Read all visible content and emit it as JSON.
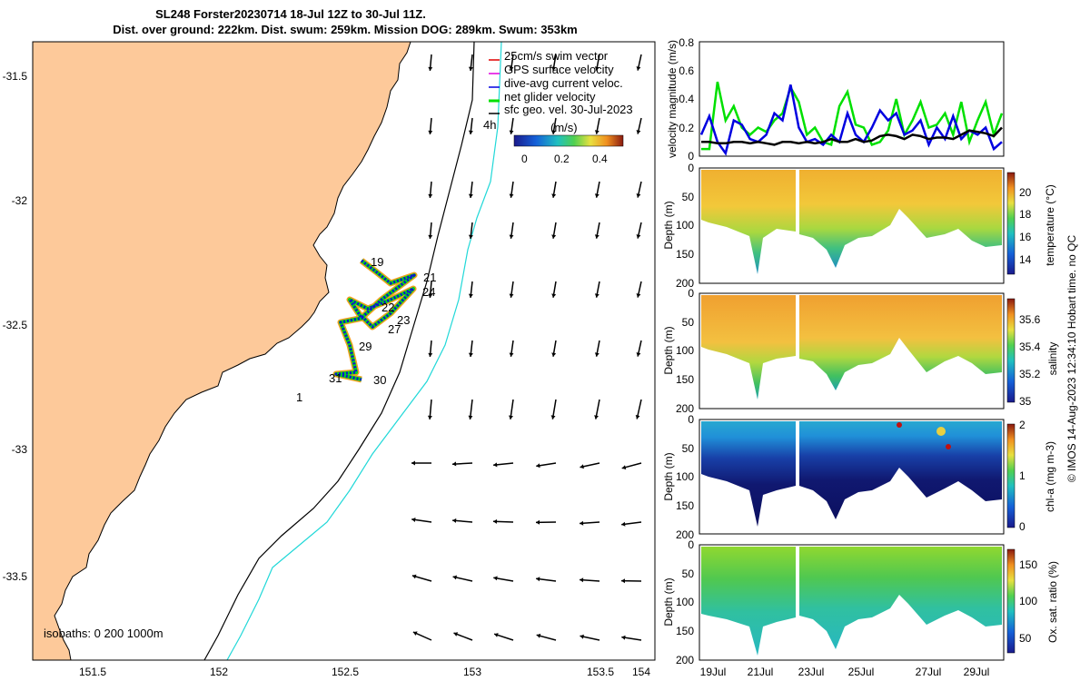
{
  "header": {
    "line1": "SL248 Forster20230714 18-Jul 12Z to 30-Jul 11Z.",
    "line2": "Dist. over ground: 222km. Dist. swum: 259km. Mission DOG: 289km. Swum: 353km"
  },
  "credit": "© IMOS 14-Aug-2023 12:34:10 Hobart time. no QC",
  "chart_data": [
    {
      "type": "map",
      "x_ticks": [
        "151.5",
        "152",
        "152.5",
        "153",
        "153.5",
        "154"
      ],
      "y_ticks": [
        "-31.5",
        "-32",
        "-32.5",
        "-33",
        "-33.5"
      ],
      "isobath_label": "isobaths: 0   200  1000m",
      "day_labels": [
        "19",
        "21",
        "24",
        "22",
        "23",
        "27",
        "29",
        "31",
        "30",
        "1"
      ],
      "legend": {
        "items": [
          {
            "label": "25cm/s swim vector",
            "color": "#e00000"
          },
          {
            "label": "GPS surface velocity",
            "color": "#e000e0"
          },
          {
            "label": "dive-avg current veloc.",
            "color": "#0000e0"
          },
          {
            "label": "net glider velocity",
            "color": "#00e000"
          },
          {
            "label": "sfc geo. vel. 30-Jul-2023",
            "color": "#000000"
          }
        ],
        "sfc_suffix": "4h",
        "colorbar_label": "(m/s)",
        "colorbar_ticks": [
          "0",
          "0.2",
          "0.4"
        ]
      }
    },
    {
      "type": "line",
      "ylabel": "velocity magnitude (m/s)",
      "ylim": [
        0,
        0.8
      ],
      "y_ticks": [
        "0",
        "0.2",
        "0.4",
        "0.6",
        "0.8"
      ],
      "x_ticks": [
        "19Jul",
        "21Jul",
        "23Jul",
        "25Jul",
        "27Jul",
        "29Jul"
      ],
      "series": [
        {
          "color": "#00e000",
          "values": [
            0.05,
            0.05,
            0.52,
            0.25,
            0.35,
            0.2,
            0.15,
            0.2,
            0.17,
            0.25,
            0.3,
            0.48,
            0.38,
            0.15,
            0.2,
            0.1,
            0.08,
            0.35,
            0.45,
            0.22,
            0.2,
            0.08,
            0.1,
            0.18,
            0.4,
            0.15,
            0.25,
            0.38,
            0.2,
            0.22,
            0.3,
            0.15,
            0.38,
            0.1,
            0.25,
            0.38,
            0.15,
            0.3
          ]
        },
        {
          "color": "#0000e0",
          "values": [
            0.15,
            0.28,
            0.1,
            0.02,
            0.25,
            0.22,
            0.12,
            0.1,
            0.15,
            0.3,
            0.25,
            0.5,
            0.2,
            0.1,
            0.12,
            0.08,
            0.15,
            0.1,
            0.3,
            0.15,
            0.1,
            0.2,
            0.32,
            0.25,
            0.3,
            0.15,
            0.18,
            0.25,
            0.08,
            0.2,
            0.12,
            0.28,
            0.12,
            0.18,
            0.15,
            0.2,
            0.05,
            0.1
          ]
        },
        {
          "color": "#000000",
          "values": [
            0.1,
            0.1,
            0.09,
            0.09,
            0.1,
            0.1,
            0.09,
            0.1,
            0.09,
            0.08,
            0.1,
            0.1,
            0.09,
            0.1,
            0.09,
            0.1,
            0.12,
            0.1,
            0.1,
            0.12,
            0.1,
            0.11,
            0.14,
            0.15,
            0.14,
            0.12,
            0.15,
            0.14,
            0.12,
            0.13,
            0.13,
            0.12,
            0.15,
            0.18,
            0.17,
            0.16,
            0.14,
            0.2
          ]
        }
      ]
    },
    {
      "type": "heatmap",
      "ylabel": "Depth (m)",
      "y_ticks": [
        "0",
        "50",
        "100",
        "150",
        "200"
      ],
      "colorbar_label": "temperature (°C)",
      "colorbar_ticks": [
        "14",
        "16",
        "18",
        "20"
      ]
    },
    {
      "type": "heatmap",
      "ylabel": "Depth (m)",
      "y_ticks": [
        "0",
        "50",
        "100",
        "150",
        "200"
      ],
      "colorbar_label": "salinity",
      "colorbar_ticks": [
        "35",
        "35.2",
        "35.4",
        "35.6"
      ]
    },
    {
      "type": "heatmap",
      "ylabel": "Depth (m)",
      "y_ticks": [
        "0",
        "50",
        "100",
        "150",
        "200"
      ],
      "colorbar_label": "chl-a (mg m-3)",
      "colorbar_ticks": [
        "0",
        "1",
        "2"
      ]
    },
    {
      "type": "heatmap",
      "ylabel": "Depth (m)",
      "y_ticks": [
        "0",
        "50",
        "100",
        "150",
        "200"
      ],
      "colorbar_label": "Ox. sat. ratio (%)",
      "colorbar_ticks": [
        "50",
        "100",
        "150"
      ],
      "x_ticks": [
        "19Jul",
        "21Jul",
        "23Jul",
        "25Jul",
        "27Jul",
        "29Jul"
      ]
    }
  ]
}
